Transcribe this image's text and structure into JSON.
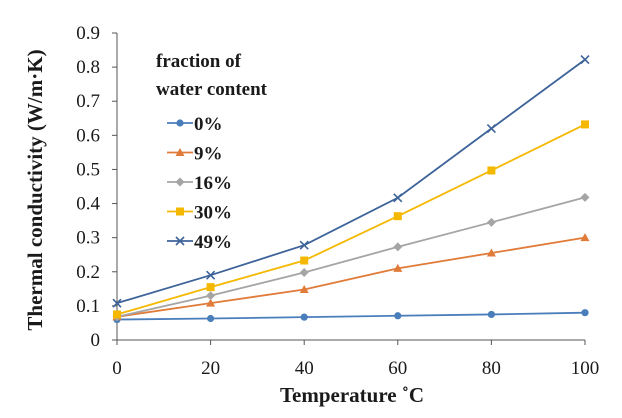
{
  "chart_data": {
    "type": "line",
    "title": "",
    "xlabel": "Temperature ˚C",
    "ylabel": "Thermal conductivity (W/m·K)",
    "xlim": [
      0,
      100
    ],
    "ylim": [
      0,
      0.9
    ],
    "x": [
      0,
      20,
      40,
      60,
      80,
      100
    ],
    "x_ticks": [
      "0",
      "20",
      "40",
      "60",
      "80",
      "100"
    ],
    "y_ticks": [
      "0",
      "0.1",
      "0.2",
      "0.3",
      "0.4",
      "0.5",
      "0.6",
      "0.7",
      "0.8",
      "0.9"
    ],
    "grid": false,
    "legend": {
      "title_line1": "fraction of",
      "title_line2": "water content",
      "placement": "top-left"
    },
    "series": [
      {
        "name": "0%",
        "color": "#4a7ebb",
        "marker": "circle",
        "values": [
          0.06,
          0.063,
          0.067,
          0.071,
          0.075,
          0.08
        ]
      },
      {
        "name": "9%",
        "color": "#e07b39",
        "marker": "triangle",
        "values": [
          0.068,
          0.108,
          0.148,
          0.21,
          0.255,
          0.3
        ]
      },
      {
        "name": "16%",
        "color": "#a5a5a5",
        "marker": "diamond",
        "values": [
          0.068,
          0.13,
          0.198,
          0.273,
          0.345,
          0.418
        ]
      },
      {
        "name": "30%",
        "color": "#f5b800",
        "marker": "square",
        "values": [
          0.075,
          0.155,
          0.233,
          0.363,
          0.497,
          0.632
        ]
      },
      {
        "name": "49%",
        "color": "#3d6399",
        "marker": "cross",
        "values": [
          0.108,
          0.19,
          0.278,
          0.417,
          0.62,
          0.822
        ]
      }
    ]
  }
}
